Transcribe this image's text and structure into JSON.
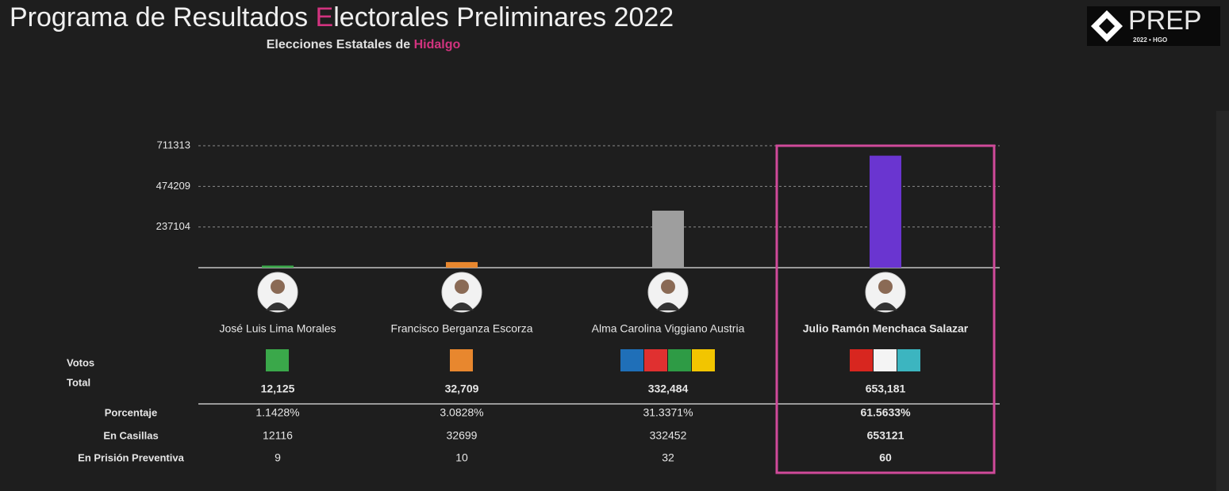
{
  "header": {
    "title_parts": [
      "Programa de Resultados ",
      "E",
      "lectorales Preliminares 2022"
    ],
    "subtitle_parts": [
      "Elecciones Estatales de ",
      "Hidalgo"
    ],
    "logo": "PREP",
    "logo_sub": "2022 • HGO"
  },
  "chart_data": {
    "type": "bar",
    "categories": [
      "José Luis Lima Morales",
      "Francisco Berganza Escorza",
      "Alma Carolina Viggiano Austria",
      "Julio Ramón Menchaca Salazar"
    ],
    "values": [
      12125,
      32709,
      332484,
      653181
    ],
    "value_labels": [
      "12,125",
      "32,709",
      "332,484",
      "653,181"
    ],
    "colors": [
      "#3aa84a",
      "#e8872e",
      "#9e9e9e",
      "#6a35d0"
    ],
    "ylim": [
      0,
      711313
    ],
    "yticks": [
      237104,
      474209,
      711313
    ],
    "grid": true
  },
  "table": {
    "votes_label": "Votos",
    "total_label": "Total",
    "rows": [
      {
        "label": "Porcentaje",
        "cells": [
          "1.1428%",
          "3.0828%",
          "31.3371%",
          "61.5633%"
        ]
      },
      {
        "label": "En Casillas",
        "cells": [
          12116,
          32699,
          332452,
          653121
        ]
      },
      {
        "label": "En Prisión Preventiva",
        "cells": [
          9,
          10,
          32,
          60
        ]
      }
    ]
  }
}
